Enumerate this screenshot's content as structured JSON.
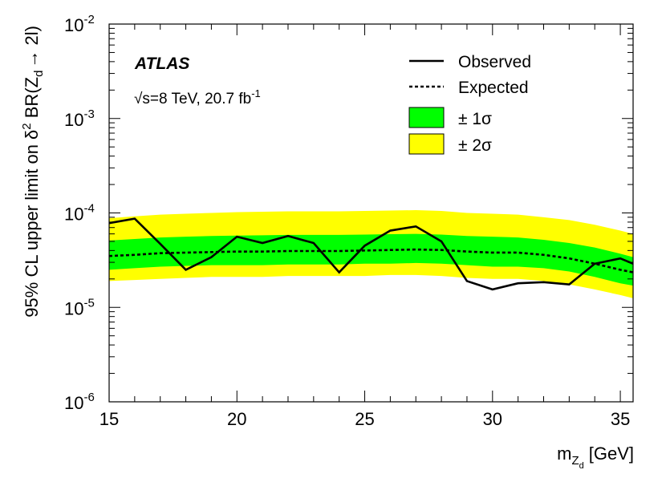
{
  "chart_data": {
    "type": "line",
    "experiment_label": "ATLAS",
    "energy_label": "√s=8 TeV, 20.7 fb",
    "energy_label_sup": "-1",
    "xlabel": "m",
    "xlabel_sub": "Z",
    "xlabel_subsub": "d",
    "xlabel_unit": "[GeV]",
    "ylabel_prefix": "95% CL upper limit on δ",
    "ylabel_sup": "2",
    "ylabel_mid": " BR(Z",
    "ylabel_sub": "d",
    "ylabel_suffix": "→ 2l)",
    "xlim": [
      15,
      35.5
    ],
    "ylim": [
      1e-06,
      0.01
    ],
    "yscale": "log",
    "x_ticks": [
      15,
      20,
      25,
      30,
      35
    ],
    "x_tick_labels": [
      "15",
      "20",
      "25",
      "30",
      "35"
    ],
    "y_ticks": [
      -6,
      -5,
      -4,
      -3,
      -2
    ],
    "y_tick_base": "10",
    "y_tick_exponents": [
      "-6",
      "-5",
      "-4",
      "-3",
      "-2"
    ],
    "legend_position": "top-right",
    "legend": {
      "observed": "Observed",
      "expected": "Expected",
      "one_sigma": "± 1σ",
      "two_sigma": "± 2σ"
    },
    "colors": {
      "one_sigma": "#00ff00",
      "two_sigma": "#ffff00",
      "line": "#000000"
    },
    "x": [
      15,
      16,
      17,
      18,
      19,
      20,
      21,
      22,
      23,
      24,
      25,
      26,
      27,
      28,
      29,
      30,
      31,
      32,
      33,
      34,
      35,
      35.5
    ],
    "observed": [
      7.8e-05,
      8.7e-05,
      4.7e-05,
      2.5e-05,
      3.4e-05,
      5.6e-05,
      4.8e-05,
      5.7e-05,
      4.8e-05,
      2.35e-05,
      4.5e-05,
      6.5e-05,
      7.2e-05,
      5e-05,
      1.9e-05,
      1.55e-05,
      1.8e-05,
      1.85e-05,
      1.75e-05,
      2.9e-05,
      3.3e-05,
      2.9e-05
    ],
    "expected": [
      3.5e-05,
      3.6e-05,
      3.75e-05,
      3.8e-05,
      3.85e-05,
      3.9e-05,
      3.9e-05,
      3.95e-05,
      3.95e-05,
      3.95e-05,
      4e-05,
      4.05e-05,
      4.1e-05,
      4.05e-05,
      3.9e-05,
      3.8e-05,
      3.8e-05,
      3.6e-05,
      3.3e-05,
      2.9e-05,
      2.5e-05,
      2.35e-05
    ],
    "one_sigma_low": [
      2.5e-05,
      2.6e-05,
      2.7e-05,
      2.75e-05,
      2.8e-05,
      2.8e-05,
      2.8e-05,
      2.85e-05,
      2.85e-05,
      2.85e-05,
      2.9e-05,
      2.9e-05,
      2.95e-05,
      2.9e-05,
      2.8e-05,
      2.7e-05,
      2.7e-05,
      2.6e-05,
      2.4e-05,
      2.1e-05,
      1.8e-05,
      1.7e-05
    ],
    "one_sigma_high": [
      5.1e-05,
      5.3e-05,
      5.5e-05,
      5.6e-05,
      5.7e-05,
      5.75e-05,
      5.8e-05,
      5.85e-05,
      5.85e-05,
      5.85e-05,
      5.9e-05,
      5.95e-05,
      6e-05,
      5.9e-05,
      5.7e-05,
      5.6e-05,
      5.5e-05,
      5.2e-05,
      4.8e-05,
      4.3e-05,
      3.7e-05,
      3.4e-05
    ],
    "two_sigma_low": [
      1.9e-05,
      1.95e-05,
      2e-05,
      2.05e-05,
      2.1e-05,
      2.1e-05,
      2.1e-05,
      2.15e-05,
      2.15e-05,
      2.15e-05,
      2.15e-05,
      2.2e-05,
      2.2e-05,
      2.15e-05,
      2.05e-05,
      2e-05,
      2e-05,
      1.9e-05,
      1.75e-05,
      1.55e-05,
      1.35e-05,
      1.25e-05
    ],
    "two_sigma_high": [
      8.8e-05,
      9.2e-05,
      9.6e-05,
      9.8e-05,
      0.0001,
      0.000102,
      0.000103,
      0.000104,
      0.000104,
      0.000104,
      0.000105,
      0.000106,
      0.000107,
      0.000105,
      0.0001,
      9.8e-05,
      9.6e-05,
      9e-05,
      8.4e-05,
      7.5e-05,
      6.5e-05,
      6e-05
    ]
  }
}
